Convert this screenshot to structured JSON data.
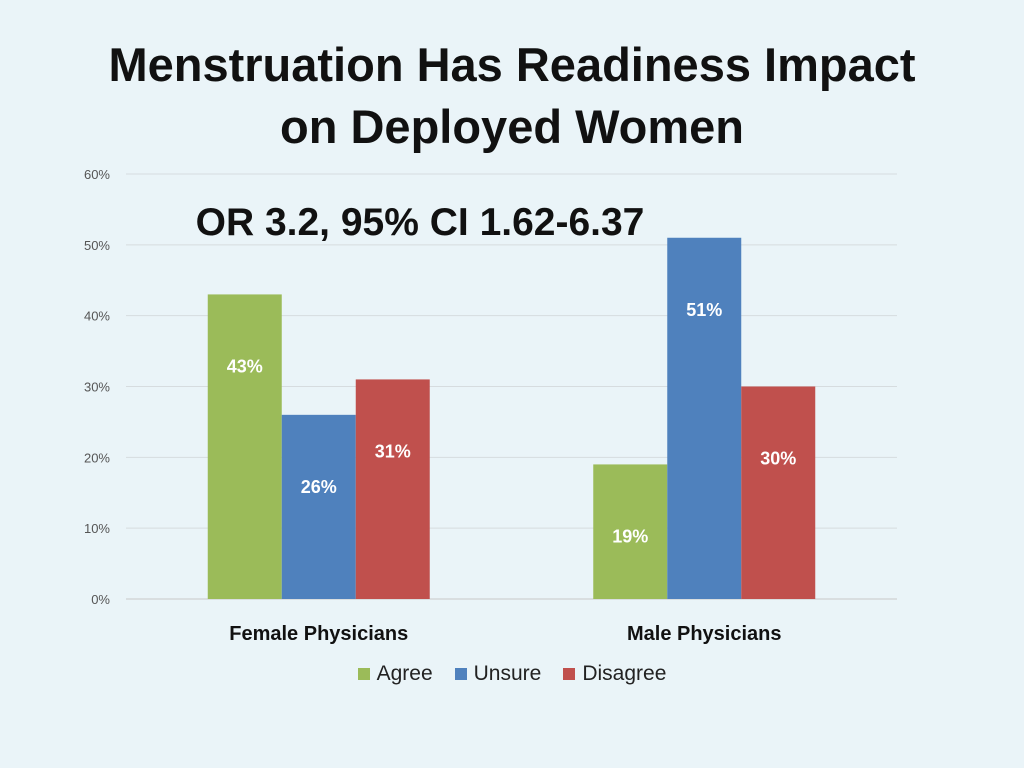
{
  "slide": {
    "title_line1": "Menstruation Has Readiness Impact",
    "title_line2": "on Deployed Women"
  },
  "chart_data": {
    "type": "bar",
    "categories": [
      "Female Physicians",
      "Male Physicians"
    ],
    "series": [
      {
        "name": "Agree",
        "values": [
          43,
          19
        ],
        "color": "#9bbb59",
        "labels": [
          "43%",
          "19%"
        ]
      },
      {
        "name": "Unsure",
        "values": [
          26,
          51
        ],
        "color": "#4f81bd",
        "labels": [
          "26%",
          "51%"
        ]
      },
      {
        "name": "Disagree",
        "values": [
          31,
          30
        ],
        "color": "#c0504d",
        "labels": [
          "31%",
          "30%"
        ]
      }
    ],
    "ylim": [
      0,
      60
    ],
    "yticks": [
      "0%",
      "10%",
      "20%",
      "30%",
      "40%",
      "50%",
      "60%"
    ],
    "grid": true,
    "legend_position": "bottom",
    "annotation": "OR 3.2, 95% CI 1.62-6.37"
  }
}
